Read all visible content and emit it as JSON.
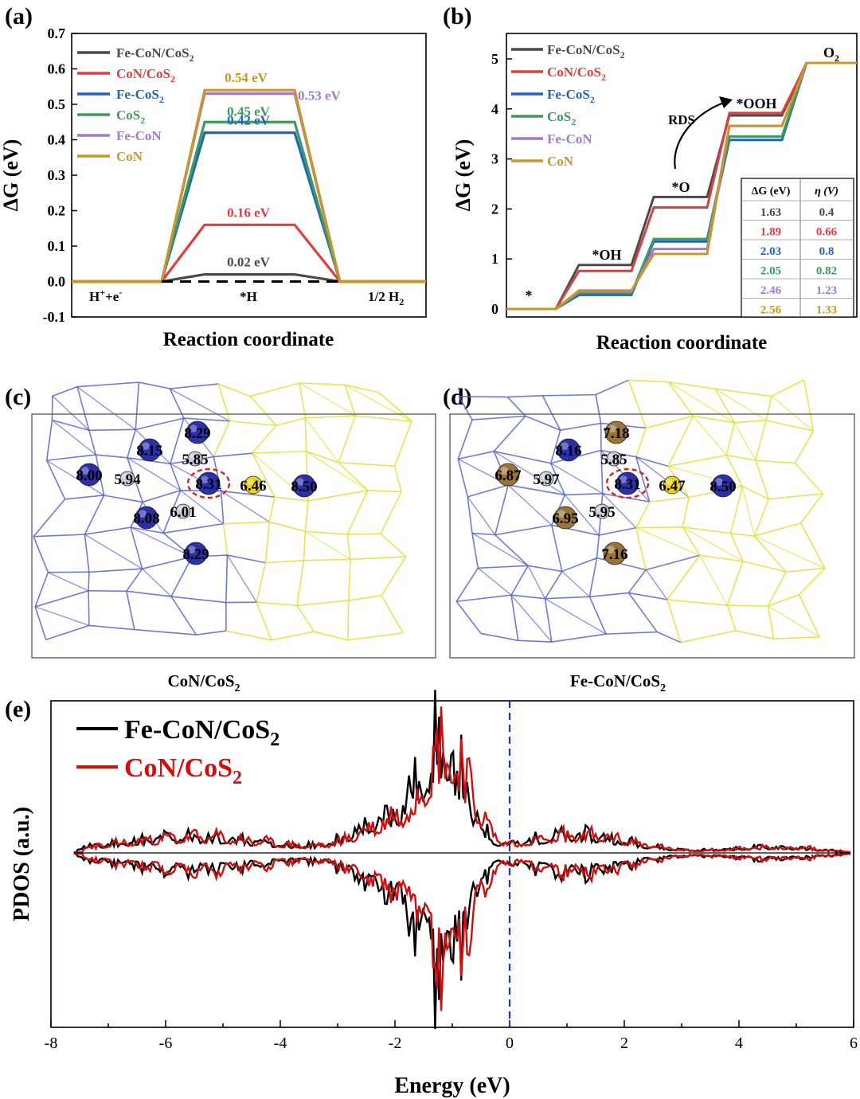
{
  "colors": {
    "Fe-CoN/CoS2": "#4a4a4a",
    "CoN/CoS2": "#d94040",
    "Fe-CoS2": "#1f66b8",
    "CoS2": "#3d9a5c",
    "Fe-CoN": "#a27ad0",
    "CoN": "#c8962a",
    "co": "#2b2fa8",
    "s": "#e8d21a",
    "fe": "#9a7436",
    "n": "#c8ccd8",
    "wireA": "#5a62c8",
    "wireB": "#e5de3a",
    "e_fe": "#000000",
    "e_con": "#cc1111",
    "fermi": "#2233cc"
  },
  "chart_data": [
    {
      "panel": "(a)",
      "type": "line",
      "xlabel": "Reaction coordinate",
      "ylabel": "ΔG (eV)",
      "ylim": [
        -0.1,
        0.7
      ],
      "yticks": [
        "-0.1",
        "0.0",
        "0.1",
        "0.2",
        "0.3",
        "0.4",
        "0.5",
        "0.6",
        "0.7"
      ],
      "states": [
        "H⁺+e⁻",
        "*H",
        "1/2 H₂"
      ],
      "legend": [
        {
          "base": "Fe-CoN/CoS",
          "sub": "2",
          "key": "Fe-CoN/CoS2"
        },
        {
          "base": "CoN/CoS",
          "sub": "2",
          "key": "CoN/CoS2"
        },
        {
          "base": "Fe-CoS",
          "sub": "2",
          "key": "Fe-CoS2"
        },
        {
          "base": "CoS",
          "sub": "2",
          "key": "CoS2"
        },
        {
          "base": "Fe-CoN",
          "sub": "",
          "key": "Fe-CoN"
        },
        {
          "base": "CoN",
          "sub": "",
          "key": "CoN"
        }
      ],
      "series": [
        {
          "key": "Fe-CoN/CoS2",
          "values": [
            0,
            0.02,
            0
          ],
          "label": "0.02 eV"
        },
        {
          "key": "CoN/CoS2",
          "values": [
            0,
            0.16,
            0
          ],
          "label": "0.16 eV"
        },
        {
          "key": "Fe-CoS2",
          "values": [
            0,
            0.42,
            0
          ],
          "label": "0.42 eV"
        },
        {
          "key": "CoS2",
          "values": [
            0,
            0.45,
            0
          ],
          "label": "0.45 eV"
        },
        {
          "key": "Fe-CoN",
          "values": [
            0,
            0.53,
            0
          ],
          "label": "0.53 eV"
        },
        {
          "key": "CoN",
          "values": [
            0,
            0.54,
            0
          ],
          "label": "0.54 eV"
        }
      ]
    },
    {
      "panel": "(b)",
      "type": "line",
      "xlabel": "Reaction coordinate",
      "ylabel": "ΔG (eV)",
      "ylim": [
        0,
        5.5
      ],
      "yticks": [
        "0",
        "1",
        "2",
        "3",
        "4",
        "5"
      ],
      "states": [
        "*",
        "*OH",
        "*O",
        "*OOH",
        "O₂"
      ],
      "rds_label": "RDS",
      "legend": [
        {
          "base": "Fe-CoN/CoS",
          "sub": "2",
          "key": "Fe-CoN/CoS2"
        },
        {
          "base": "CoN/CoS",
          "sub": "2",
          "key": "CoN/CoS2"
        },
        {
          "base": "Fe-CoS",
          "sub": "2",
          "key": "Fe-CoS2"
        },
        {
          "base": "CoS",
          "sub": "2",
          "key": "CoS2"
        },
        {
          "base": "Fe-CoN",
          "sub": "",
          "key": "Fe-CoN"
        },
        {
          "base": "CoN",
          "sub": "",
          "key": "CoN"
        }
      ],
      "series": [
        {
          "key": "Fe-CoN/CoS2",
          "values": [
            0,
            0.88,
            2.24,
            3.87,
            4.92
          ]
        },
        {
          "key": "CoN/CoS2",
          "values": [
            0,
            0.76,
            2.03,
            3.92,
            4.92
          ]
        },
        {
          "key": "Fe-CoS2",
          "values": [
            0,
            0.28,
            1.35,
            3.38,
            4.92
          ]
        },
        {
          "key": "CoS2",
          "values": [
            0,
            0.32,
            1.4,
            3.45,
            4.92
          ]
        },
        {
          "key": "Fe-CoN",
          "values": [
            0,
            0.35,
            1.2,
            3.66,
            4.92
          ]
        },
        {
          "key": "CoN",
          "values": [
            0,
            0.37,
            1.1,
            3.66,
            4.92
          ]
        }
      ],
      "table": {
        "headers": [
          "ΔG (eV)",
          "η (V)"
        ],
        "rows": [
          {
            "key": "Fe-CoN/CoS2",
            "dg": "1.63",
            "eta": "0.4"
          },
          {
            "key": "CoN/CoS2",
            "dg": "1.89",
            "eta": "0.66"
          },
          {
            "key": "Fe-CoS2",
            "dg": "2.03",
            "eta": "0.8"
          },
          {
            "key": "CoS2",
            "dg": "2.05",
            "eta": "0.82"
          },
          {
            "key": "Fe-CoN",
            "dg": "2.46",
            "eta": "1.23"
          },
          {
            "key": "CoN",
            "dg": "2.56",
            "eta": "1.33"
          }
        ]
      }
    },
    {
      "panel": "(e)",
      "type": "line",
      "xlabel": "Energy (eV)",
      "ylabel": "PDOS (a.u.)",
      "xlim": [
        -8,
        6
      ],
      "xticks": [
        "-8",
        "-6",
        "-4",
        "-2",
        "0",
        "2",
        "4",
        "6"
      ],
      "legend": [
        {
          "base": "Fe-CoN/CoS",
          "sub": "2",
          "key": "e_fe"
        },
        {
          "base": "CoN/CoS",
          "sub": "2",
          "key": "e_con"
        }
      ]
    }
  ],
  "panels": {
    "a": "(a)",
    "b": "(b)",
    "c": "(c)",
    "d": "(d)",
    "e": "(e)"
  },
  "structures": {
    "c": {
      "caption_base": "CoN/CoS",
      "caption_sub": "2",
      "labels": [
        {
          "t": "8.29",
          "type": "co"
        },
        {
          "t": "8.15",
          "type": "co"
        },
        {
          "t": "5.85",
          "type": "n"
        },
        {
          "t": "8.00",
          "type": "co"
        },
        {
          "t": "5.94",
          "type": "n"
        },
        {
          "t": "8.31",
          "type": "co",
          "ring": true
        },
        {
          "t": "6.46",
          "type": "s"
        },
        {
          "t": "8.50",
          "type": "co"
        },
        {
          "t": "6.01",
          "type": "n"
        },
        {
          "t": "8.08",
          "type": "co"
        },
        {
          "t": "8.29",
          "type": "co"
        }
      ]
    },
    "d": {
      "caption_base": "Fe-CoN/CoS",
      "caption_sub": "2",
      "labels": [
        {
          "t": "7.18",
          "type": "fe"
        },
        {
          "t": "8.16",
          "type": "co"
        },
        {
          "t": "5.85",
          "type": "n"
        },
        {
          "t": "6.87",
          "type": "fe"
        },
        {
          "t": "5.97",
          "type": "n"
        },
        {
          "t": "8.31",
          "type": "co",
          "ring": true
        },
        {
          "t": "6.47",
          "type": "s"
        },
        {
          "t": "8.50",
          "type": "co"
        },
        {
          "t": "5.95",
          "type": "n"
        },
        {
          "t": "6.95",
          "type": "fe"
        },
        {
          "t": "7.16",
          "type": "fe"
        }
      ]
    }
  }
}
